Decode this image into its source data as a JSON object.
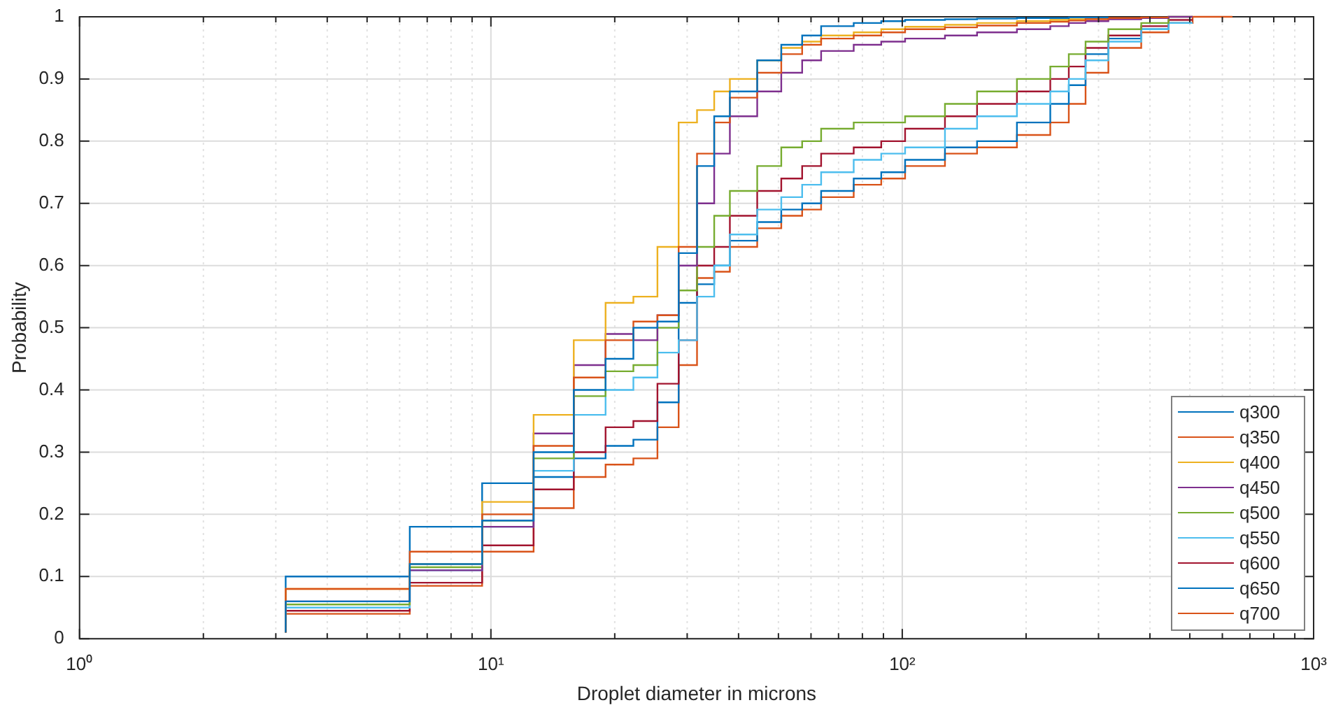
{
  "chart_data": {
    "type": "step",
    "xlabel": "Droplet diameter in microns",
    "ylabel": "Probability",
    "log": "x",
    "grid": true,
    "legend": "bottom right",
    "xlim": [
      1,
      1000
    ],
    "ylim": [
      0,
      1
    ],
    "xticks": [
      {
        "value": 1,
        "label": "10⁰"
      },
      {
        "value": 2,
        "label": null
      },
      {
        "value": 3,
        "label": null
      },
      {
        "value": 4,
        "label": null
      },
      {
        "value": 5,
        "label": null
      },
      {
        "value": 6,
        "label": null
      },
      {
        "value": 7,
        "label": null
      },
      {
        "value": 8,
        "label": null
      },
      {
        "value": 9,
        "label": null
      },
      {
        "value": 10,
        "label": "10¹"
      },
      {
        "value": 20,
        "label": null
      },
      {
        "value": 30,
        "label": null
      },
      {
        "value": 40,
        "label": null
      },
      {
        "value": 50,
        "label": null
      },
      {
        "value": 60,
        "label": null
      },
      {
        "value": 70,
        "label": null
      },
      {
        "value": 80,
        "label": null
      },
      {
        "value": 90,
        "label": null
      },
      {
        "value": 100,
        "label": "10²"
      },
      {
        "value": 200,
        "label": null
      },
      {
        "value": 300,
        "label": null
      },
      {
        "value": 400,
        "label": null
      },
      {
        "value": 500,
        "label": null
      },
      {
        "value": 600,
        "label": null
      },
      {
        "value": 700,
        "label": null
      },
      {
        "value": 800,
        "label": null
      },
      {
        "value": 900,
        "label": null
      },
      {
        "value": 1000,
        "label": "10³"
      }
    ],
    "yticks": [
      0,
      0.1,
      0.2,
      0.3,
      0.4,
      0.5,
      0.6,
      0.7,
      0.8,
      0.9,
      1
    ],
    "x": [
      3.17,
      6.35,
      9.52,
      12.7,
      15.9,
      19.0,
      22.2,
      25.4,
      28.6,
      31.7,
      34.9,
      38.1,
      44.4,
      50.8,
      57.1,
      63.5,
      76.2,
      88.9,
      101.6,
      127,
      152,
      190,
      229,
      254,
      279,
      317,
      381,
      444,
      508,
      635
    ],
    "series": [
      {
        "name": "q300",
        "color": "#0072bd",
        "values": [
          0.01,
          0.06,
          0.12,
          0.19,
          0.3,
          0.4,
          0.45,
          0.5,
          0.51,
          0.62,
          0.76,
          0.84,
          0.88,
          0.93,
          0.955,
          0.97,
          0.985,
          0.99,
          0.993,
          0.995,
          0.996,
          0.997,
          0.998,
          0.998,
          0.999,
          0.999,
          null,
          null,
          null,
          null
        ]
      },
      {
        "name": "q350",
        "color": "#d95319",
        "values": [
          0.01,
          0.08,
          0.14,
          0.2,
          0.31,
          0.42,
          0.48,
          0.51,
          0.52,
          0.63,
          0.78,
          0.83,
          0.87,
          0.91,
          0.94,
          0.955,
          0.965,
          0.97,
          0.975,
          0.98,
          0.983,
          0.986,
          0.99,
          0.992,
          0.994,
          0.996,
          0.998,
          0.999,
          null,
          null
        ]
      },
      {
        "name": "q400",
        "color": "#edb120",
        "values": [
          0.01,
          0.08,
          0.12,
          0.22,
          0.36,
          0.48,
          0.54,
          0.55,
          0.63,
          0.83,
          0.85,
          0.88,
          0.9,
          0.93,
          0.95,
          0.96,
          0.97,
          0.975,
          0.98,
          0.984,
          0.987,
          0.99,
          0.993,
          0.995,
          0.996,
          0.997,
          null,
          null,
          null,
          null
        ]
      },
      {
        "name": "q450",
        "color": "#7e2f8e",
        "values": [
          0.01,
          0.06,
          0.11,
          0.18,
          0.33,
          0.44,
          0.49,
          0.48,
          0.52,
          0.6,
          0.7,
          0.78,
          0.84,
          0.88,
          0.91,
          0.93,
          0.945,
          0.955,
          0.96,
          0.965,
          0.97,
          0.975,
          0.98,
          0.985,
          0.99,
          0.993,
          0.996,
          0.998,
          1,
          null
        ]
      },
      {
        "name": "q500",
        "color": "#77ac30",
        "values": [
          0.01,
          0.055,
          0.115,
          0.19,
          0.29,
          0.39,
          0.43,
          0.44,
          0.5,
          0.56,
          0.63,
          0.68,
          0.72,
          0.76,
          0.79,
          0.8,
          0.82,
          0.83,
          0.83,
          0.84,
          0.86,
          0.88,
          0.9,
          0.92,
          0.94,
          0.96,
          0.98,
          0.99,
          1,
          null
        ]
      },
      {
        "name": "q550",
        "color": "#4dbeee",
        "values": [
          0.01,
          0.05,
          0.11,
          0.18,
          0.27,
          0.36,
          0.4,
          0.42,
          0.46,
          0.48,
          0.55,
          0.6,
          0.65,
          0.69,
          0.71,
          0.73,
          0.75,
          0.77,
          0.78,
          0.79,
          0.82,
          0.84,
          0.86,
          0.88,
          0.9,
          0.93,
          0.96,
          0.98,
          0.99,
          null
        ]
      },
      {
        "name": "q600",
        "color": "#a2142f",
        "values": [
          0.01,
          0.045,
          0.09,
          0.15,
          0.24,
          0.3,
          0.34,
          0.35,
          0.41,
          0.48,
          0.6,
          0.63,
          0.68,
          0.72,
          0.74,
          0.76,
          0.78,
          0.79,
          0.8,
          0.82,
          0.84,
          0.86,
          0.88,
          0.9,
          0.92,
          0.95,
          0.97,
          0.985,
          0.995,
          null
        ]
      },
      {
        "name": "q650",
        "color": "#0072bd",
        "values": [
          0.01,
          0.1,
          0.18,
          0.25,
          0.26,
          0.29,
          0.31,
          0.32,
          0.38,
          0.54,
          0.57,
          0.6,
          0.64,
          0.67,
          0.69,
          0.7,
          0.72,
          0.74,
          0.75,
          0.77,
          0.79,
          0.8,
          0.83,
          0.86,
          0.89,
          0.94,
          0.965,
          0.98,
          0.99,
          null
        ]
      },
      {
        "name": "q700",
        "color": "#d95319",
        "values": [
          0.01,
          0.04,
          0.085,
          0.14,
          0.21,
          0.26,
          0.28,
          0.29,
          0.34,
          0.44,
          0.58,
          0.59,
          0.63,
          0.66,
          0.68,
          0.69,
          0.71,
          0.73,
          0.74,
          0.76,
          0.78,
          0.79,
          0.81,
          0.83,
          0.86,
          0.91,
          0.95,
          0.975,
          0.99,
          1
        ]
      }
    ]
  }
}
